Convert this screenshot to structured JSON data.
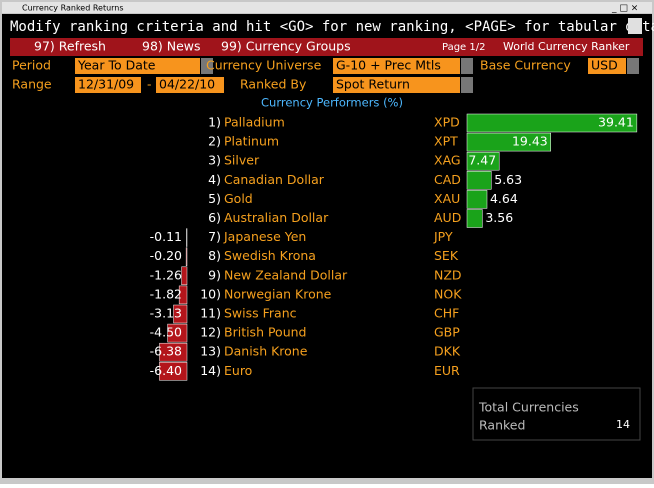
{
  "window_title": "Currency Ranked Returns",
  "command_line": "Modify ranking criteria and hit <GO> for new ranking, <PAGE> for tabular data",
  "menu": {
    "items": [
      "97) Refresh",
      "98) News",
      "99) Currency Groups"
    ],
    "page": "Page 1/2",
    "screen_title": "World Currency Ranker"
  },
  "settings": {
    "period_label": "Period",
    "period": "Year To Date",
    "universe_label": "Currency Universe",
    "universe": "G-10 + Prec Mtls",
    "base_label": "Base Currency",
    "base": "USD",
    "range_label": "Range",
    "range_start": "12/31/09",
    "range_sep": "-",
    "range_end": "04/22/10",
    "ranked_by_label": "Ranked By",
    "ranked_by": "Spot Return"
  },
  "chart_data": {
    "type": "bar",
    "title": "Currency Performers (%)",
    "rows": [
      {
        "rank": "1)",
        "name": "Palladium",
        "code": "XPD",
        "value": 39.41,
        "label": "39.41"
      },
      {
        "rank": "2)",
        "name": "Platinum",
        "code": "XPT",
        "value": 19.43,
        "label": "19.43"
      },
      {
        "rank": "3)",
        "name": "Silver",
        "code": "XAG",
        "value": 7.47,
        "label": "7.47"
      },
      {
        "rank": "4)",
        "name": "Canadian Dollar",
        "code": "CAD",
        "value": 5.63,
        "label": "5.63"
      },
      {
        "rank": "5)",
        "name": "Gold",
        "code": "XAU",
        "value": 4.64,
        "label": "4.64"
      },
      {
        "rank": "6)",
        "name": "Australian Dollar",
        "code": "AUD",
        "value": 3.56,
        "label": "3.56"
      },
      {
        "rank": "7)",
        "name": "Japanese Yen",
        "code": "JPY",
        "value": -0.11,
        "label": "-0.11"
      },
      {
        "rank": "8)",
        "name": "Swedish Krona",
        "code": "SEK",
        "value": -0.2,
        "label": "-0.20"
      },
      {
        "rank": "9)",
        "name": "New Zealand Dollar",
        "code": "NZD",
        "value": -1.26,
        "label": "-1.26"
      },
      {
        "rank": "10)",
        "name": "Norwegian Krone",
        "code": "NOK",
        "value": -1.82,
        "label": "-1.82"
      },
      {
        "rank": "11)",
        "name": "Swiss Franc",
        "code": "CHF",
        "value": -3.13,
        "label": "-3.13"
      },
      {
        "rank": "12)",
        "name": "British Pound",
        "code": "GBP",
        "value": -4.5,
        "label": "-4.50"
      },
      {
        "rank": "13)",
        "name": "Danish Krone",
        "code": "DKK",
        "value": -6.38,
        "label": "-6.38"
      },
      {
        "rank": "14)",
        "name": "Euro",
        "code": "EUR",
        "value": -6.4,
        "label": "-6.40"
      }
    ],
    "positive_color": "#1aa31a",
    "negative_color": "#b3151b"
  },
  "summary": {
    "label_1": "Total Currencies",
    "label_2": "Ranked",
    "count": "14"
  }
}
